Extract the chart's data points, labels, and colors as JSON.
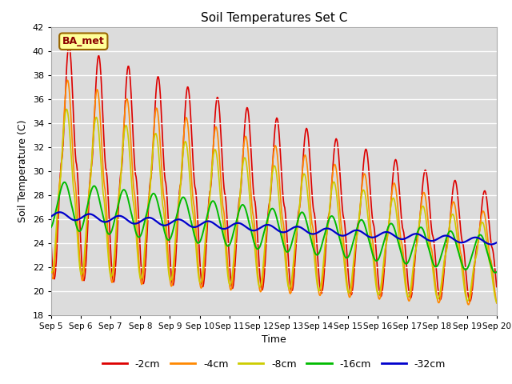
{
  "title": "Soil Temperatures Set C",
  "xlabel": "Time",
  "ylabel": "Soil Temperature (C)",
  "ylim": [
    18,
    42
  ],
  "yticks": [
    18,
    20,
    22,
    24,
    26,
    28,
    30,
    32,
    34,
    36,
    38,
    40,
    42
  ],
  "bg_color": "#dcdcdc",
  "fig_bg_color": "#ffffff",
  "line_colors": {
    "-2cm": "#dd0000",
    "-4cm": "#ff8800",
    "-8cm": "#cccc00",
    "-16cm": "#00bb00",
    "-32cm": "#0000cc"
  },
  "annotation_text": "BA_met",
  "annotation_bg": "#ffff99",
  "annotation_border": "#996600",
  "n_days": 15,
  "start_day": 5
}
